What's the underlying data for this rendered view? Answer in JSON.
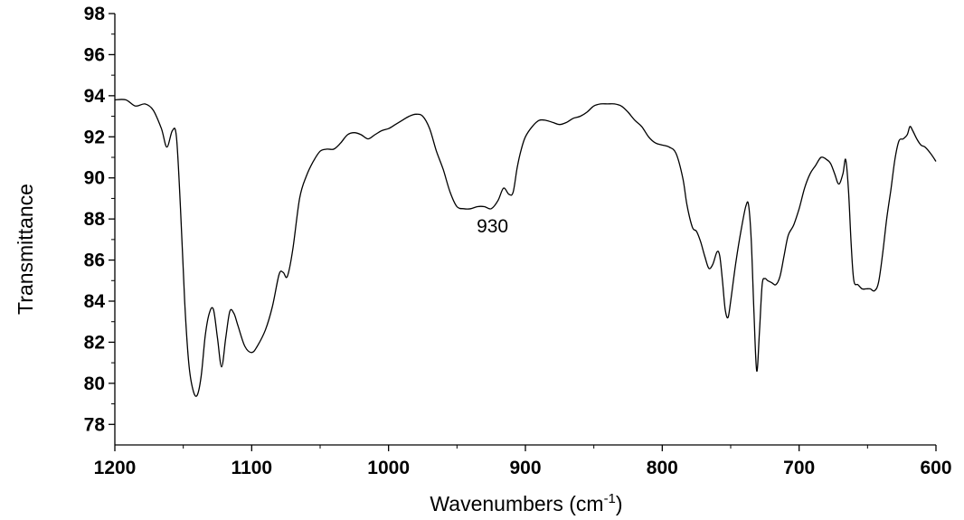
{
  "chart_data": {
    "type": "line",
    "title": "",
    "xlabel": "Wavenumbers (cm",
    "xlabel_sup": "-1",
    "xlabel_tail": ")",
    "ylabel": "Transmittance",
    "xlim": [
      1200,
      600
    ],
    "x_reversed": true,
    "ylim": [
      77,
      98
    ],
    "x_ticks": [
      1200,
      1100,
      1000,
      900,
      800,
      700,
      600
    ],
    "y_ticks": [
      78,
      80,
      82,
      84,
      86,
      88,
      90,
      92,
      94,
      96,
      98
    ],
    "grid": false,
    "legend": "none",
    "line_color": "#000000",
    "annotations": [
      {
        "text": "930",
        "x": 930,
        "y": 87.6
      }
    ],
    "series": [
      {
        "x": [
          1200,
          1192,
          1185,
          1178,
          1172,
          1166,
          1162,
          1158,
          1155,
          1152,
          1149,
          1146,
          1143,
          1140,
          1137,
          1134,
          1131,
          1128,
          1125,
          1122,
          1119,
          1116,
          1113,
          1110,
          1105,
          1100,
          1096,
          1090,
          1085,
          1080,
          1077,
          1074,
          1070,
          1065,
          1060,
          1055,
          1050,
          1045,
          1040,
          1035,
          1030,
          1025,
          1020,
          1015,
          1010,
          1005,
          1000,
          995,
          990,
          985,
          980,
          975,
          970,
          965,
          960,
          955,
          950,
          945,
          940,
          935,
          930,
          925,
          920,
          916,
          912,
          909,
          906,
          903,
          900,
          895,
          890,
          885,
          880,
          875,
          870,
          865,
          860,
          855,
          850,
          845,
          840,
          835,
          830,
          825,
          820,
          815,
          810,
          805,
          800,
          795,
          790,
          785,
          782,
          778,
          775,
          772,
          769,
          766,
          763,
          760,
          758,
          756,
          754,
          752,
          750,
          746,
          742,
          739,
          737,
          735,
          733,
          731,
          729,
          727,
          725,
          723,
          720,
          717,
          714,
          711,
          708,
          704,
          700,
          696,
          692,
          688,
          684,
          680,
          677,
          674,
          671,
          668,
          666,
          664,
          662,
          660,
          657,
          654,
          651,
          648,
          645,
          642,
          639,
          636,
          633,
          630,
          627,
          624,
          621,
          619,
          617,
          614,
          611,
          608,
          604,
          600
        ],
        "y": [
          93.8,
          93.8,
          93.5,
          93.6,
          93.3,
          92.4,
          91.5,
          92.3,
          92.0,
          88.5,
          84.0,
          81.0,
          79.7,
          79.4,
          80.3,
          82.3,
          83.4,
          83.6,
          82.2,
          80.8,
          82.2,
          83.5,
          83.4,
          82.8,
          81.8,
          81.5,
          81.8,
          82.6,
          83.7,
          85.3,
          85.4,
          85.2,
          86.5,
          89.0,
          90.1,
          90.8,
          91.3,
          91.4,
          91.4,
          91.7,
          92.1,
          92.2,
          92.1,
          91.9,
          92.1,
          92.3,
          92.4,
          92.6,
          92.8,
          93.0,
          93.1,
          93.0,
          92.4,
          91.3,
          90.4,
          89.3,
          88.6,
          88.5,
          88.5,
          88.6,
          88.6,
          88.5,
          88.9,
          89.5,
          89.2,
          89.3,
          90.5,
          91.4,
          92.0,
          92.5,
          92.8,
          92.8,
          92.7,
          92.6,
          92.7,
          92.9,
          93.0,
          93.2,
          93.5,
          93.6,
          93.6,
          93.6,
          93.5,
          93.2,
          92.8,
          92.5,
          92.0,
          91.7,
          91.6,
          91.5,
          91.2,
          90.0,
          88.7,
          87.6,
          87.4,
          86.9,
          86.2,
          85.6,
          85.8,
          86.4,
          86.2,
          85.0,
          83.6,
          83.2,
          84.0,
          86.0,
          87.6,
          88.6,
          88.7,
          87.0,
          83.5,
          80.6,
          82.5,
          84.8,
          85.1,
          85.0,
          84.9,
          84.8,
          85.2,
          86.2,
          87.2,
          87.7,
          88.5,
          89.5,
          90.2,
          90.6,
          91.0,
          90.9,
          90.7,
          90.2,
          89.7,
          90.2,
          90.9,
          89.5,
          86.8,
          85.0,
          84.8,
          84.6,
          84.6,
          84.6,
          84.5,
          84.9,
          86.3,
          88.0,
          89.4,
          90.9,
          91.8,
          91.9,
          92.1,
          92.5,
          92.3,
          91.9,
          91.6,
          91.5,
          91.2,
          90.8
        ]
      }
    ]
  }
}
